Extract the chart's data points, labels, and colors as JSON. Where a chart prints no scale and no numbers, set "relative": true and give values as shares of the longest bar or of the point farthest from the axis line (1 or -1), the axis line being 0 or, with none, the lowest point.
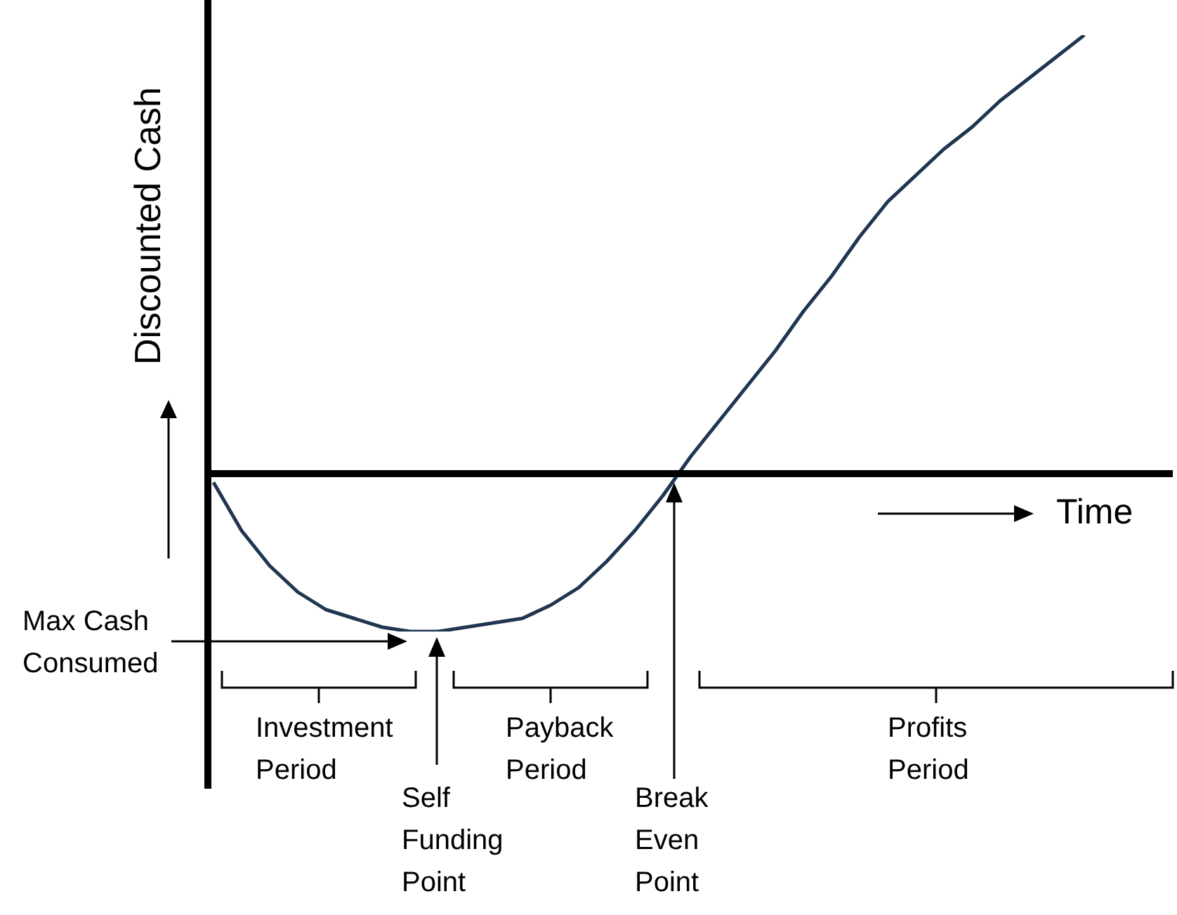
{
  "chart_data": {
    "type": "line",
    "relative": true,
    "ylabel": "Discounted Cash",
    "categories": [
      null,
      null,
      null,
      null,
      null,
      null,
      null,
      null,
      null,
      null,
      null,
      null,
      null,
      null,
      null,
      null,
      null,
      null,
      null,
      null,
      null,
      null,
      null,
      null,
      null,
      null,
      null,
      null,
      null,
      null,
      null,
      null
    ],
    "series": [
      {
        "color": "#1f3550",
        "values": [
          -0.02,
          -0.13,
          -0.21,
          -0.27,
          -0.31,
          -0.33,
          -0.35,
          -0.36,
          -0.36,
          -0.35,
          -0.34,
          -0.33,
          -0.3,
          -0.26,
          -0.2,
          -0.13,
          -0.05,
          0.04,
          0.12,
          0.2,
          0.28,
          0.37,
          0.45,
          0.54,
          0.62,
          0.68,
          0.74,
          0.79,
          0.85,
          0.9,
          0.95,
          1
        ]
      }
    ],
    "annotations": [
      "Time",
      "Max Cash Consumed",
      "Investment Period",
      "Self Funding Point",
      "Payback Period",
      "Break Even Point",
      "Profits Period"
    ]
  }
}
